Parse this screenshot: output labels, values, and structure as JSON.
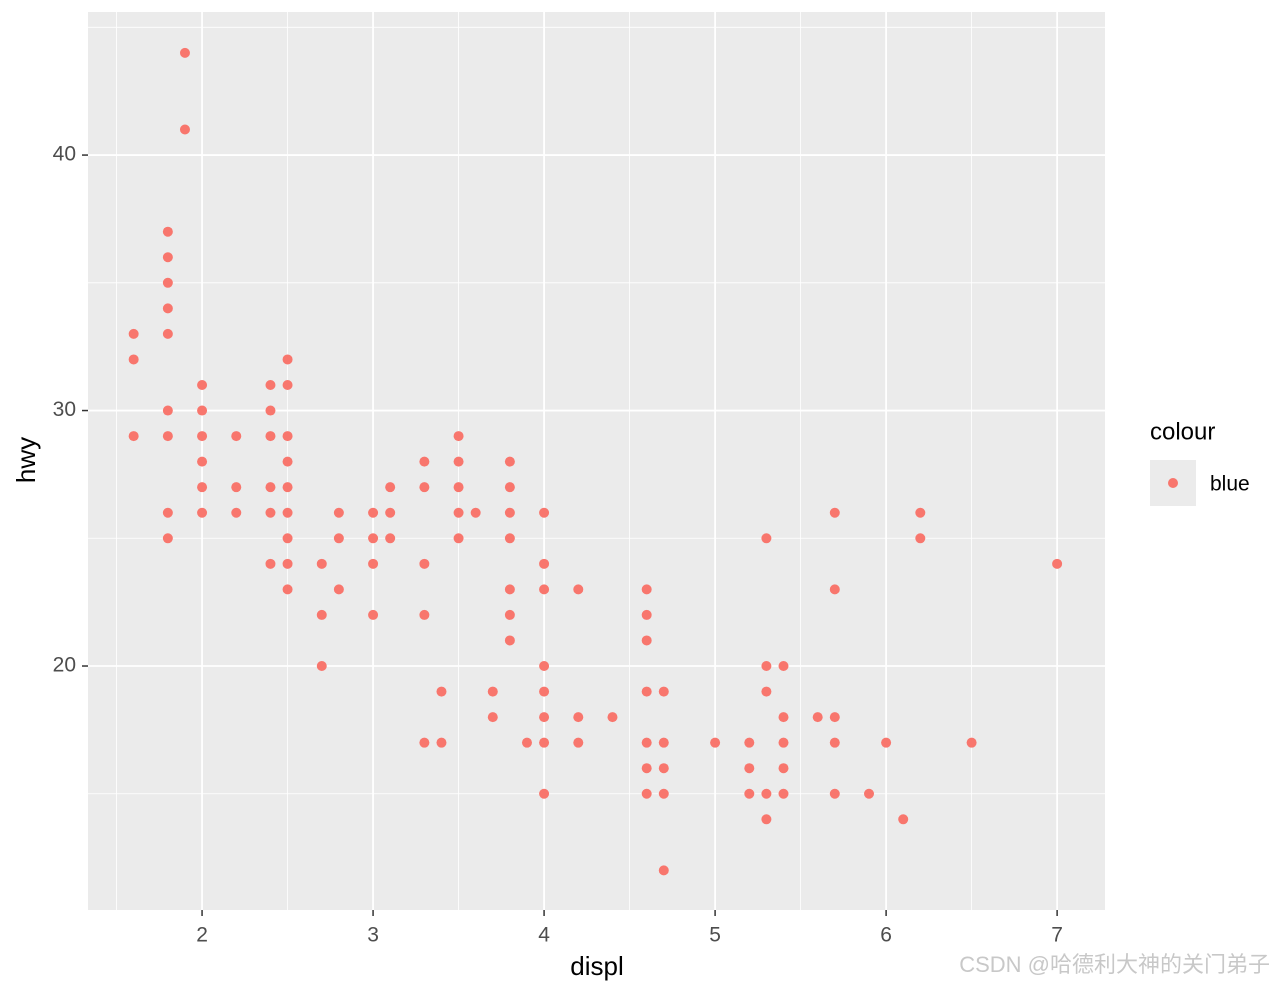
{
  "chart_data": {
    "type": "scatter",
    "x_label": "displ",
    "y_label": "hwy",
    "xlim": [
      1.333,
      7.28
    ],
    "ylim": [
      10.45,
      45.6
    ],
    "xticks": [
      2,
      3,
      4,
      5,
      6,
      7
    ],
    "yticks": [
      20,
      30,
      40
    ],
    "x_minor_grid": [
      1.5,
      2.5,
      3.5,
      4.5,
      5.5,
      6.5
    ],
    "y_minor_grid": [
      15,
      25,
      35,
      45
    ],
    "grid": true,
    "legend_title": "colour",
    "legend_position": "right",
    "series": [
      {
        "name": "blue",
        "color": "#F8766D",
        "x": [
          1.6,
          1.6,
          1.6,
          1.8,
          1.8,
          1.8,
          1.8,
          1.8,
          1.8,
          1.8,
          1.8,
          1.8,
          1.9,
          1.9,
          2.0,
          2.0,
          2.0,
          2.0,
          2.0,
          2.0,
          2.2,
          2.2,
          2.2,
          2.4,
          2.4,
          2.4,
          2.4,
          2.4,
          2.4,
          2.5,
          2.5,
          2.5,
          2.5,
          2.5,
          2.5,
          2.5,
          2.5,
          2.5,
          2.7,
          2.7,
          2.7,
          2.8,
          2.8,
          2.8,
          3.0,
          3.0,
          3.0,
          3.0,
          3.1,
          3.1,
          3.1,
          3.3,
          3.3,
          3.3,
          3.3,
          3.3,
          3.4,
          3.4,
          3.5,
          3.5,
          3.5,
          3.5,
          3.5,
          3.6,
          3.7,
          3.7,
          3.8,
          3.8,
          3.8,
          3.8,
          3.8,
          3.8,
          3.8,
          3.9,
          4.0,
          4.0,
          4.0,
          4.0,
          4.0,
          4.0,
          4.0,
          4.0,
          4.2,
          4.2,
          4.2,
          4.4,
          4.6,
          4.6,
          4.6,
          4.6,
          4.6,
          4.6,
          4.6,
          4.7,
          4.7,
          4.7,
          4.7,
          4.7,
          5.0,
          5.2,
          5.2,
          5.2,
          5.3,
          5.3,
          5.3,
          5.3,
          5.3,
          5.4,
          5.4,
          5.4,
          5.4,
          5.4,
          5.6,
          5.7,
          5.7,
          5.7,
          5.7,
          5.7,
          5.9,
          6.0,
          6.1,
          6.2,
          6.2,
          6.5,
          7.0
        ],
        "values": [
          33,
          32,
          29,
          37,
          36,
          35,
          34,
          33,
          30,
          29,
          26,
          25,
          44,
          41,
          31,
          30,
          29,
          28,
          27,
          26,
          29,
          27,
          26,
          31,
          30,
          29,
          27,
          26,
          24,
          32,
          31,
          29,
          28,
          27,
          26,
          25,
          24,
          23,
          24,
          22,
          20,
          26,
          25,
          23,
          26,
          25,
          24,
          22,
          27,
          26,
          25,
          28,
          27,
          24,
          22,
          17,
          19,
          17,
          29,
          28,
          27,
          26,
          25,
          26,
          19,
          18,
          28,
          27,
          26,
          25,
          23,
          22,
          21,
          17,
          26,
          24,
          23,
          20,
          19,
          18,
          17,
          15,
          23,
          18,
          17,
          18,
          23,
          22,
          21,
          19,
          17,
          16,
          15,
          19,
          17,
          16,
          15,
          12,
          17,
          17,
          16,
          15,
          25,
          20,
          19,
          15,
          14,
          20,
          18,
          17,
          16,
          15,
          18,
          26,
          23,
          18,
          17,
          15,
          15,
          17,
          14,
          26,
          25,
          17,
          24
        ]
      }
    ]
  },
  "watermark": "CSDN @哈德利大神的关门弟子"
}
